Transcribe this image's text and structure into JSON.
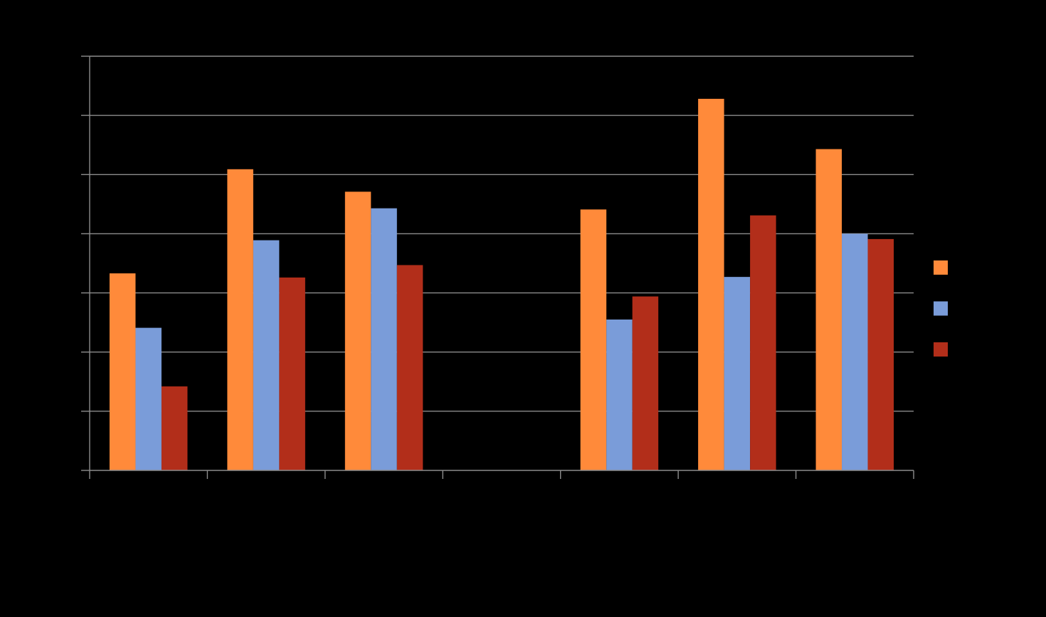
{
  "chart_data": {
    "type": "bar",
    "title": "",
    "xlabel": "",
    "ylabel": "",
    "categories": [
      "",
      "",
      "",
      "",
      "",
      "",
      ""
    ],
    "ylim": [
      0,
      7
    ],
    "grid": true,
    "legend_position": "right",
    "series": [
      {
        "color": "#FF8A3A",
        "values": [
          3.33,
          5.09,
          4.71,
          null,
          4.41,
          6.28,
          5.43
        ]
      },
      {
        "color": "#7A9CD9",
        "values": [
          2.41,
          3.89,
          4.43,
          null,
          2.55,
          3.27,
          4.0
        ]
      },
      {
        "color": "#B22E1A",
        "values": [
          1.42,
          3.26,
          3.47,
          null,
          2.94,
          4.31,
          3.91
        ]
      }
    ]
  }
}
